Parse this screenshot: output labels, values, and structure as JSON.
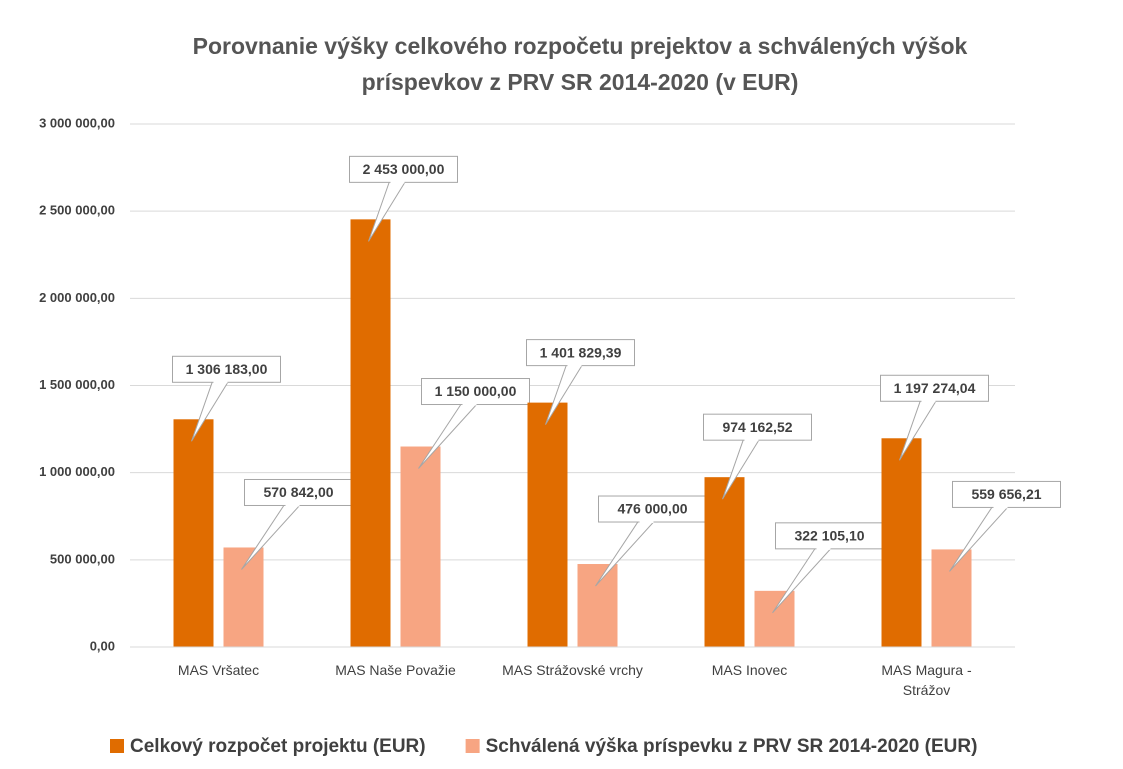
{
  "chart_data": {
    "type": "bar",
    "title": "Porovnanie výšky celkového rozpočetu prejektov a schválených výšok príspevkov z PRV SR 2014-2020 (v EUR)",
    "categories": [
      "MAS Vršatec",
      "MAS Naše Považie",
      "MAS Strážovské vrchy",
      "MAS Inovec",
      "MAS Magura - Strážov"
    ],
    "series": [
      {
        "name": "Celkový rozpočet projektu (EUR)",
        "color": "#e06c00",
        "values": [
          1306183,
          2453000,
          1401829.39,
          974162.52,
          1197274.04
        ],
        "value_labels": [
          "1 306 183,00",
          "2 453 000,00",
          "1 401 829,39",
          "974 162,52",
          "1 197 274,04"
        ]
      },
      {
        "name": "Schválená výška príspevku z PRV SR 2014-2020 (EUR)",
        "color": "#f7a582",
        "values": [
          570842,
          1150000,
          476000,
          322105.1,
          559656.21
        ],
        "value_labels": [
          "570 842,00",
          "1 150 000,00",
          "476 000,00",
          "322 105,10",
          "559 656,21"
        ]
      }
    ],
    "ylim": [
      0,
      3000000
    ],
    "yticks": [
      {
        "value": 0,
        "label": "0,00"
      },
      {
        "value": 500000,
        "label": "500 000,00"
      },
      {
        "value": 1000000,
        "label": "1 000 000,00"
      },
      {
        "value": 1500000,
        "label": "1 500 000,00"
      },
      {
        "value": 2000000,
        "label": "2 000 000,00"
      },
      {
        "value": 2500000,
        "label": "2 500 000,00"
      },
      {
        "value": 3000000,
        "label": "3 000 000,00"
      }
    ],
    "grid": true,
    "legend": "bottom"
  }
}
